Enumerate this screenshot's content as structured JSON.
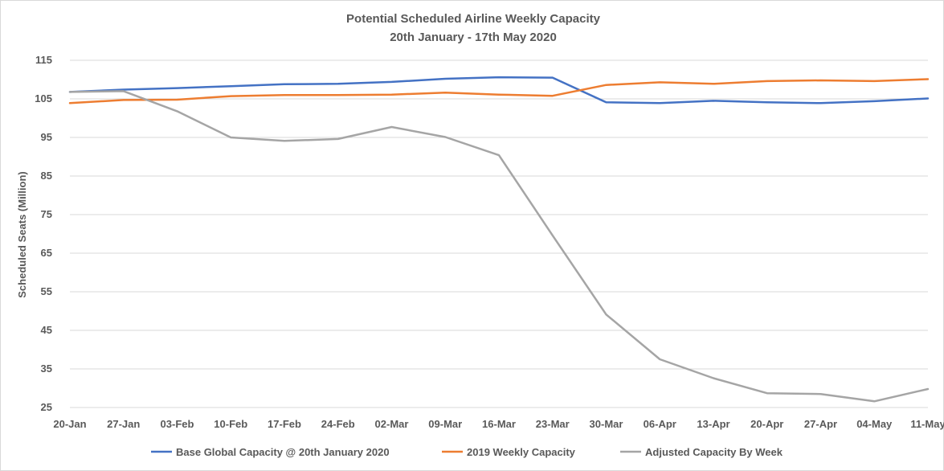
{
  "chart_data": {
    "type": "line",
    "title": "Potential Scheduled Airline Weekly Capacity",
    "subtitle": "20th January - 17th May 2020",
    "xlabel": "",
    "ylabel": "Scheduled Seats (Million)",
    "ylim": [
      25,
      115
    ],
    "yticks": [
      25,
      35,
      45,
      55,
      65,
      75,
      85,
      95,
      105,
      115
    ],
    "grid": true,
    "legend_position": "bottom",
    "categories": [
      "20-Jan",
      "27-Jan",
      "03-Feb",
      "10-Feb",
      "17-Feb",
      "24-Feb",
      "02-Mar",
      "09-Mar",
      "16-Mar",
      "23-Mar",
      "30-Mar",
      "06-Apr",
      "13-Apr",
      "20-Apr",
      "27-Apr",
      "04-May",
      "11-May"
    ],
    "series": [
      {
        "name": "Base Global Capacity @ 20th January 2020",
        "color": "#4472c4",
        "values": [
          106.8,
          107.4,
          107.8,
          108.3,
          108.8,
          108.9,
          109.4,
          110.2,
          110.6,
          110.5,
          104.1,
          103.9,
          104.5,
          104.1,
          103.9,
          104.4,
          105.1
        ]
      },
      {
        "name": "2019 Weekly Capacity",
        "color": "#ed7d31",
        "values": [
          103.9,
          104.7,
          104.8,
          105.7,
          106.0,
          106.0,
          106.1,
          106.6,
          106.1,
          105.8,
          108.6,
          109.3,
          108.9,
          109.6,
          109.8,
          109.6,
          110.1
        ]
      },
      {
        "name": "Adjusted Capacity By Week",
        "color": "#a5a5a5",
        "values": [
          106.8,
          107.0,
          101.8,
          95.0,
          94.1,
          94.6,
          97.7,
          95.1,
          90.4,
          69.6,
          49.1,
          37.5,
          32.6,
          28.7,
          28.5,
          26.6,
          29.8
        ]
      }
    ]
  }
}
